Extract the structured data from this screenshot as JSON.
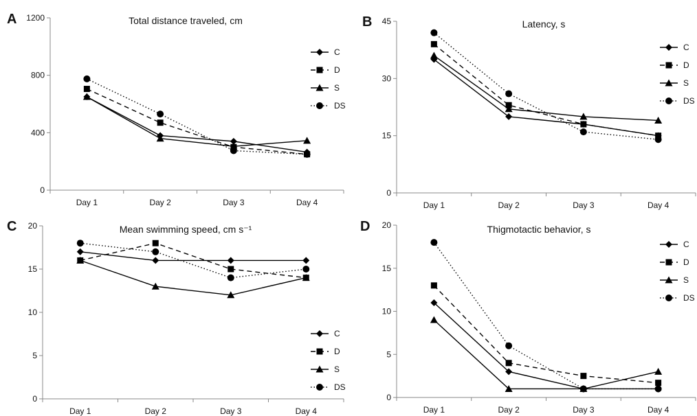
{
  "chart_data": [
    {
      "type": "line",
      "panel": "A",
      "title": "Total distance traveled, cm",
      "categories": [
        "Day 1",
        "Day 2",
        "Day 3",
        "Day 4"
      ],
      "ylim": [
        0,
        1200
      ],
      "yticks": [
        "0",
        "400",
        "800",
        "1200"
      ],
      "grid": false,
      "legend_position": "right",
      "series": [
        {
          "name": "C",
          "marker": "diamond",
          "dash": "solid",
          "values": [
            650,
            380,
            340,
            265
          ]
        },
        {
          "name": "D",
          "marker": "square",
          "dash": "dashed",
          "values": [
            705,
            470,
            300,
            250
          ]
        },
        {
          "name": "S",
          "marker": "triangle",
          "dash": "solid",
          "values": [
            650,
            360,
            305,
            345
          ]
        },
        {
          "name": "DS",
          "marker": "circle",
          "dash": "dotted",
          "values": [
            775,
            530,
            275,
            250
          ]
        }
      ]
    },
    {
      "type": "line",
      "panel": "B",
      "title": "Latency, s",
      "categories": [
        "Day 1",
        "Day 2",
        "Day 3",
        "Day 4"
      ],
      "ylim": [
        0,
        45
      ],
      "yticks": [
        "0",
        "15",
        "30",
        "45"
      ],
      "grid": false,
      "legend_position": "right",
      "series": [
        {
          "name": "C",
          "marker": "diamond",
          "dash": "solid",
          "values": [
            35,
            20,
            18,
            15
          ]
        },
        {
          "name": "D",
          "marker": "square",
          "dash": "dashed",
          "values": [
            39,
            23,
            18,
            15
          ]
        },
        {
          "name": "S",
          "marker": "triangle",
          "dash": "solid",
          "values": [
            36,
            22,
            20,
            19
          ]
        },
        {
          "name": "DS",
          "marker": "circle",
          "dash": "dotted",
          "values": [
            42,
            26,
            16,
            14
          ]
        }
      ]
    },
    {
      "type": "line",
      "panel": "C",
      "title": "Mean swimming speed, cm s⁻¹",
      "categories": [
        "Day 1",
        "Day 2",
        "Day 3",
        "Day 4"
      ],
      "ylim": [
        0,
        20
      ],
      "yticks": [
        "0",
        "5",
        "10",
        "15",
        "20"
      ],
      "grid": false,
      "legend_position": "right",
      "series": [
        {
          "name": "C",
          "marker": "diamond",
          "dash": "solid",
          "values": [
            17,
            16,
            16,
            16
          ]
        },
        {
          "name": "D",
          "marker": "square",
          "dash": "dashed",
          "values": [
            16,
            18,
            15,
            14
          ]
        },
        {
          "name": "S",
          "marker": "triangle",
          "dash": "solid",
          "values": [
            16,
            13,
            12,
            14
          ]
        },
        {
          "name": "DS",
          "marker": "circle",
          "dash": "dotted",
          "values": [
            18,
            17,
            14,
            15
          ]
        }
      ]
    },
    {
      "type": "line",
      "panel": "D",
      "title": "Thigmotactic behavior, s",
      "categories": [
        "Day 1",
        "Day 2",
        "Day 3",
        "Day 4"
      ],
      "ylim": [
        0,
        20
      ],
      "yticks": [
        "0",
        "5",
        "10",
        "15",
        "20"
      ],
      "grid": false,
      "legend_position": "right",
      "series": [
        {
          "name": "C",
          "marker": "diamond",
          "dash": "solid",
          "values": [
            11,
            3,
            1,
            1
          ]
        },
        {
          "name": "D",
          "marker": "square",
          "dash": "dashed",
          "values": [
            13,
            4,
            2.5,
            1.7
          ]
        },
        {
          "name": "S",
          "marker": "triangle",
          "dash": "solid",
          "values": [
            9,
            1,
            1,
            3
          ]
        },
        {
          "name": "DS",
          "marker": "circle",
          "dash": "dotted",
          "values": [
            18,
            6,
            1,
            1
          ]
        }
      ]
    }
  ]
}
